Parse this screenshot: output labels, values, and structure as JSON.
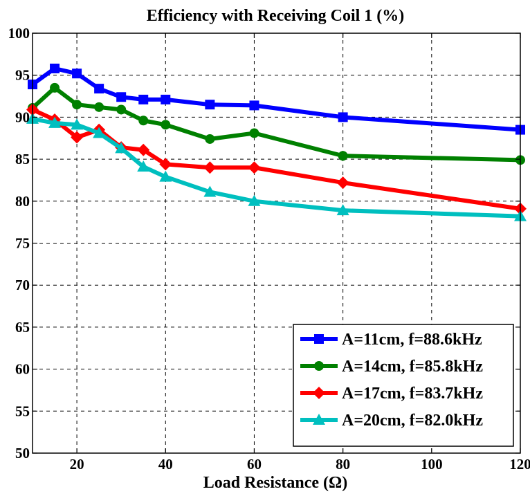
{
  "chart_data": {
    "type": "line",
    "title": "Efficiency with Receiving Coil 1 (%)",
    "xlabel": "Load Resistance (Ω)",
    "ylabel": "",
    "xlim": [
      10,
      120
    ],
    "ylim": [
      50,
      100
    ],
    "xticks": [
      20,
      40,
      60,
      80,
      100,
      120
    ],
    "yticks": [
      50,
      55,
      60,
      65,
      70,
      75,
      80,
      85,
      90,
      95,
      100
    ],
    "grid": true,
    "legend_position": "bottom-right",
    "x": [
      10,
      15,
      20,
      25,
      30,
      35,
      40,
      50,
      60,
      80,
      120
    ],
    "series": [
      {
        "name": "A=11cm, f=88.6kHz",
        "color": "#0000ff",
        "marker": "square",
        "values": [
          93.9,
          95.8,
          95.2,
          93.4,
          92.4,
          92.1,
          92.1,
          91.5,
          91.4,
          90.0,
          88.5
        ]
      },
      {
        "name": "A=14cm, f=85.8kHz",
        "color": "#008000",
        "marker": "circle",
        "values": [
          91.1,
          93.5,
          91.5,
          91.2,
          90.9,
          89.6,
          89.1,
          87.4,
          88.1,
          85.4,
          84.9
        ]
      },
      {
        "name": "A=17cm, f=83.7kHz",
        "color": "#ff0000",
        "marker": "diamond",
        "values": [
          90.9,
          89.7,
          87.6,
          88.5,
          86.4,
          86.1,
          84.4,
          84.0,
          84.0,
          82.2,
          79.1
        ]
      },
      {
        "name": "A=20cm, f=82.0kHz",
        "color": "#00bfbf",
        "marker": "triangle",
        "values": [
          89.8,
          89.3,
          89.1,
          88.1,
          86.3,
          84.1,
          82.9,
          81.1,
          80.0,
          78.9,
          78.2
        ]
      }
    ]
  }
}
